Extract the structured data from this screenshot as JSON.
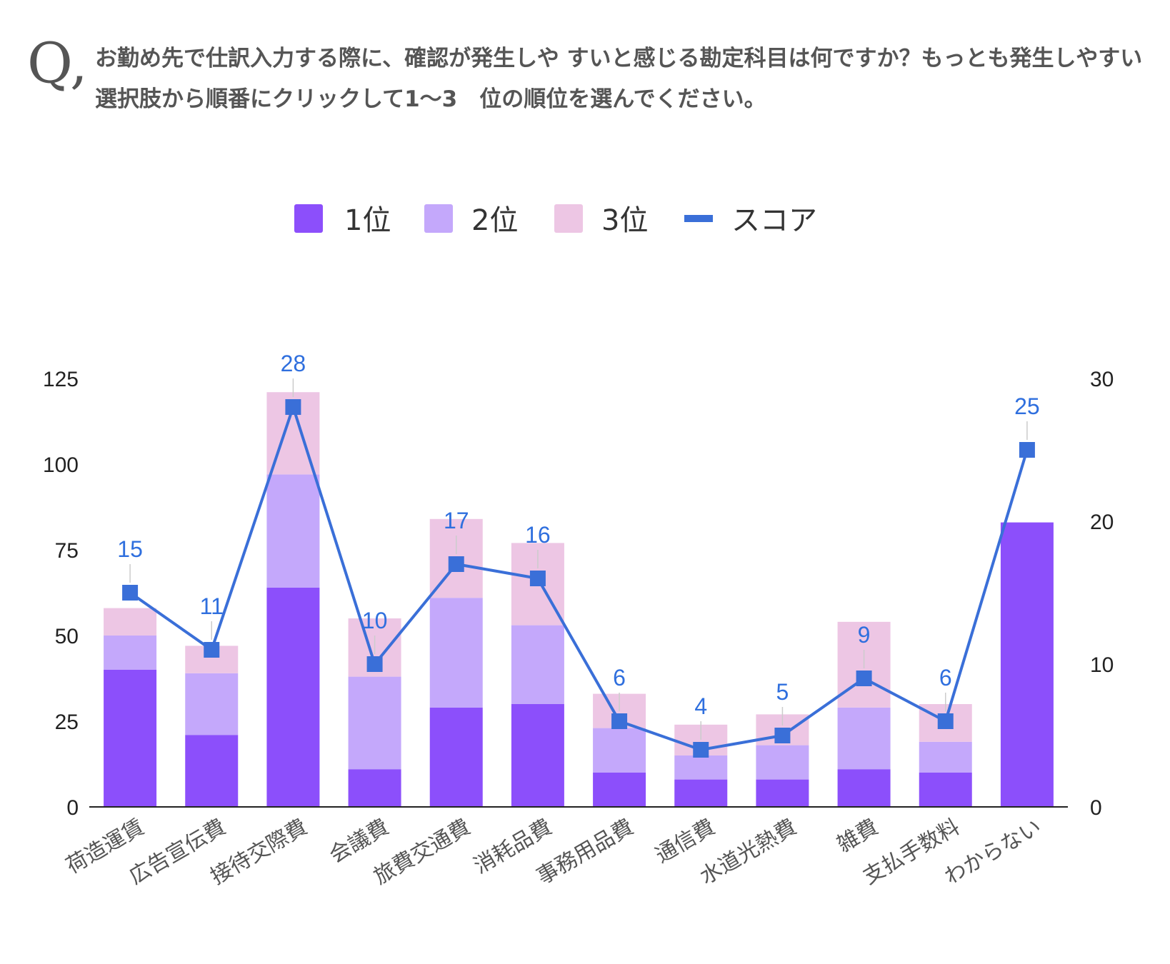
{
  "question": {
    "mark": "Q,",
    "text": "お勤め先で仕訳入力する際に、確認が発生しや すいと感じる勘定科目は何ですか？もっとも発生しやすい選択肢から順番にクリックして1〜3　位の順位を選んでください。"
  },
  "colors": {
    "rank1": "#8c4ffb",
    "rank2": "#c4a8fb",
    "rank3": "#edc6e4",
    "score": "#3a6fd8",
    "score_label": "#2f6fde",
    "axis": "#222222"
  },
  "chart_data": {
    "type": "bar",
    "stacked": true,
    "title": "",
    "xlabel": "",
    "ylabel": "",
    "legend_position": "top",
    "grid": false,
    "categories": [
      "荷造運賃",
      "広告宣伝費",
      "接待交際費",
      "会議費",
      "旅費交通費",
      "消耗品費",
      "事務用品費",
      "通信費",
      "水道光熱費",
      "雑費",
      "支払手数料",
      "わからない"
    ],
    "series": [
      {
        "name": "1位",
        "axis": "left",
        "values": [
          40,
          21,
          64,
          11,
          29,
          30,
          10,
          8,
          8,
          11,
          10,
          83
        ]
      },
      {
        "name": "2位",
        "axis": "left",
        "values": [
          10,
          18,
          33,
          27,
          32,
          23,
          13,
          7,
          10,
          18,
          9,
          0
        ]
      },
      {
        "name": "3位",
        "axis": "left",
        "values": [
          8,
          8,
          24,
          17,
          23,
          24,
          10,
          9,
          9,
          25,
          11,
          0
        ]
      },
      {
        "name": "スコア",
        "axis": "right",
        "type": "line",
        "values": [
          15,
          11,
          28,
          10,
          17,
          16,
          6,
          4,
          5,
          9,
          6,
          25
        ]
      }
    ],
    "y_left": {
      "range": [
        0,
        125
      ],
      "ticks": [
        "0",
        "25",
        "50",
        "75",
        "100",
        "125"
      ]
    },
    "y_right": {
      "range": [
        0,
        30
      ],
      "ticks": [
        "0",
        "10",
        "20",
        "30"
      ]
    }
  }
}
